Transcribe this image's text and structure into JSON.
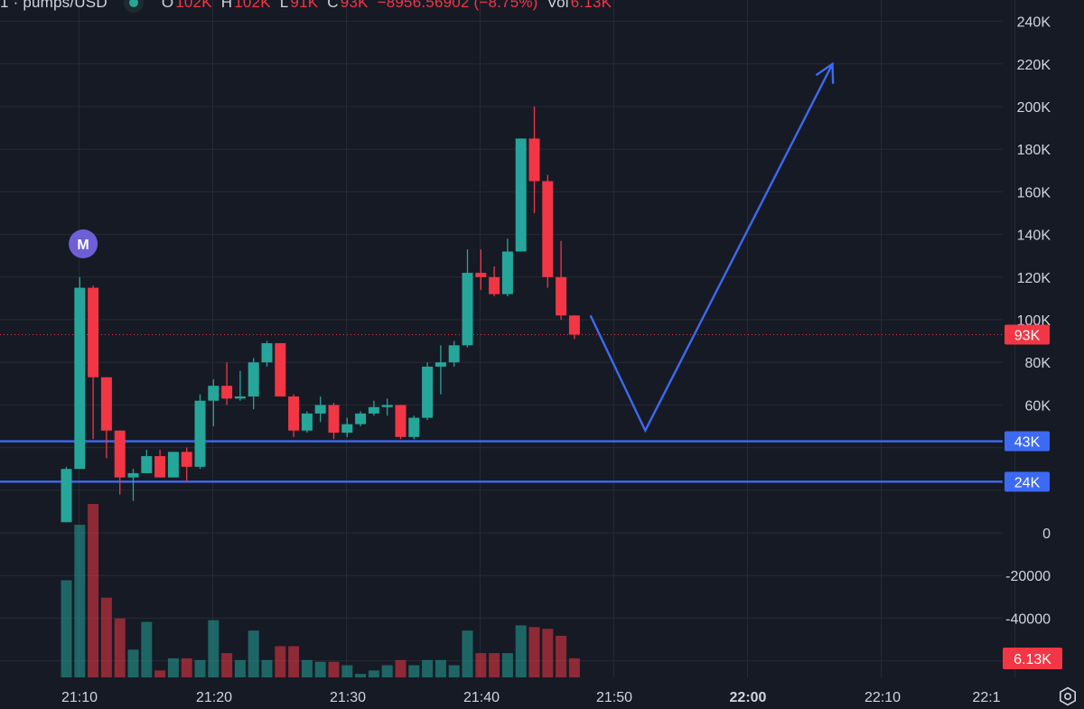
{
  "legend": {
    "symbol": "1 · pumps/USD",
    "o_label": "O",
    "o_value": "102K",
    "h_label": "H",
    "h_value": "102K",
    "l_label": "L",
    "l_value": "91K",
    "c_label": "C",
    "c_value": "93K",
    "change": "−8956.56902 (−8.75%)",
    "vol_label": "Vol",
    "vol_value": "6.13K"
  },
  "price_tags": {
    "last": "93K",
    "line1": "43K",
    "line2": "24K",
    "volume": "6.13K"
  },
  "colors": {
    "background": "#161a25",
    "grid": "#262a35",
    "up": "#26a69a",
    "down": "#f23645",
    "drawing": "#3d6af2",
    "marker": "#6e5fd7"
  },
  "marker": {
    "label": "M",
    "time": "21:12"
  },
  "chart_data": {
    "type": "candlestick",
    "interval_minutes": 1,
    "y_axis": {
      "ticks": [
        240000,
        220000,
        200000,
        180000,
        160000,
        140000,
        120000,
        100000,
        80000,
        60000,
        40000,
        20000,
        0,
        -20000,
        -40000,
        -60000
      ],
      "tick_labels": [
        "240K",
        "220K",
        "200K",
        "180K",
        "160K",
        "140K",
        "120K",
        "100K",
        "80K",
        "60K",
        "",
        "",
        "0",
        "-20000",
        "-40000",
        ""
      ]
    },
    "x_axis": {
      "ticks": [
        "21:10",
        "21:20",
        "21:30",
        "21:40",
        "21:50",
        "22:00",
        "22:10",
        "22:1"
      ],
      "bold_tick": "22:00"
    },
    "candles": [
      {
        "t": "21:10",
        "o": 5000,
        "h": 31000,
        "l": 5000,
        "c": 30000
      },
      {
        "t": "21:11",
        "o": 30000,
        "h": 120000,
        "l": 30000,
        "c": 115000
      },
      {
        "t": "21:12",
        "o": 115000,
        "h": 116000,
        "l": 44000,
        "c": 73000
      },
      {
        "t": "21:13",
        "o": 73000,
        "h": 73000,
        "l": 35000,
        "c": 48000
      },
      {
        "t": "21:14",
        "o": 48000,
        "h": 48000,
        "l": 18000,
        "c": 26000
      },
      {
        "t": "21:15",
        "o": 26000,
        "h": 30000,
        "l": 15000,
        "c": 28000
      },
      {
        "t": "21:16",
        "o": 28000,
        "h": 39000,
        "l": 28000,
        "c": 36000
      },
      {
        "t": "21:17",
        "o": 36000,
        "h": 39000,
        "l": 26000,
        "c": 26000
      },
      {
        "t": "21:18",
        "o": 26000,
        "h": 38000,
        "l": 26000,
        "c": 38000
      },
      {
        "t": "21:19",
        "o": 38000,
        "h": 40000,
        "l": 24000,
        "c": 31000
      },
      {
        "t": "21:20",
        "o": 31000,
        "h": 65000,
        "l": 30000,
        "c": 62000
      },
      {
        "t": "21:21",
        "o": 62000,
        "h": 72000,
        "l": 50000,
        "c": 69000
      },
      {
        "t": "21:22",
        "o": 69000,
        "h": 80000,
        "l": 60000,
        "c": 63000
      },
      {
        "t": "21:23",
        "o": 63000,
        "h": 76000,
        "l": 62000,
        "c": 64000
      },
      {
        "t": "21:24",
        "o": 64000,
        "h": 82000,
        "l": 58000,
        "c": 80000
      },
      {
        "t": "21:25",
        "o": 80000,
        "h": 90000,
        "l": 78000,
        "c": 89000
      },
      {
        "t": "21:26",
        "o": 89000,
        "h": 89000,
        "l": 64000,
        "c": 64000
      },
      {
        "t": "21:27",
        "o": 64000,
        "h": 65000,
        "l": 45000,
        "c": 48000
      },
      {
        "t": "21:28",
        "o": 48000,
        "h": 57000,
        "l": 47000,
        "c": 56000
      },
      {
        "t": "21:29",
        "o": 56000,
        "h": 64000,
        "l": 52000,
        "c": 60000
      },
      {
        "t": "21:30",
        "o": 60000,
        "h": 61000,
        "l": 44000,
        "c": 47000
      },
      {
        "t": "21:31",
        "o": 47000,
        "h": 54000,
        "l": 45000,
        "c": 51000
      },
      {
        "t": "21:32",
        "o": 51000,
        "h": 57000,
        "l": 50000,
        "c": 56000
      },
      {
        "t": "21:33",
        "o": 56000,
        "h": 62000,
        "l": 55000,
        "c": 59000
      },
      {
        "t": "21:34",
        "o": 59000,
        "h": 63000,
        "l": 55000,
        "c": 60000
      },
      {
        "t": "21:35",
        "o": 60000,
        "h": 60000,
        "l": 44000,
        "c": 45000
      },
      {
        "t": "21:36",
        "o": 45000,
        "h": 55000,
        "l": 44000,
        "c": 54000
      },
      {
        "t": "21:37",
        "o": 54000,
        "h": 80000,
        "l": 53000,
        "c": 78000
      },
      {
        "t": "21:38",
        "o": 78000,
        "h": 88000,
        "l": 65000,
        "c": 80000
      },
      {
        "t": "21:39",
        "o": 80000,
        "h": 90000,
        "l": 78000,
        "c": 88000
      },
      {
        "t": "21:40",
        "o": 88000,
        "h": 133000,
        "l": 87000,
        "c": 122000
      },
      {
        "t": "21:41",
        "o": 122000,
        "h": 133000,
        "l": 114000,
        "c": 120000
      },
      {
        "t": "21:42",
        "o": 120000,
        "h": 125000,
        "l": 111000,
        "c": 112000
      },
      {
        "t": "21:43",
        "o": 112000,
        "h": 138000,
        "l": 111000,
        "c": 132000
      },
      {
        "t": "21:44",
        "o": 132000,
        "h": 185000,
        "l": 132000,
        "c": 185000
      },
      {
        "t": "21:45",
        "o": 185000,
        "h": 200000,
        "l": 150000,
        "c": 165000
      },
      {
        "t": "21:46",
        "o": 165000,
        "h": 168000,
        "l": 115000,
        "c": 120000
      },
      {
        "t": "21:47",
        "o": 120000,
        "h": 137000,
        "l": 100000,
        "c": 102000
      },
      {
        "t": "21:48",
        "o": 102000,
        "h": 102000,
        "l": 91000,
        "c": 93000
      }
    ],
    "horizontal_lines": [
      43000,
      24000
    ],
    "last_price": 93000,
    "drawing_path": [
      {
        "t": "21:49.2",
        "p": 102000
      },
      {
        "t": "21:53.3",
        "p": 48000
      },
      {
        "t": "22:07.3",
        "p": 220000
      }
    ]
  }
}
